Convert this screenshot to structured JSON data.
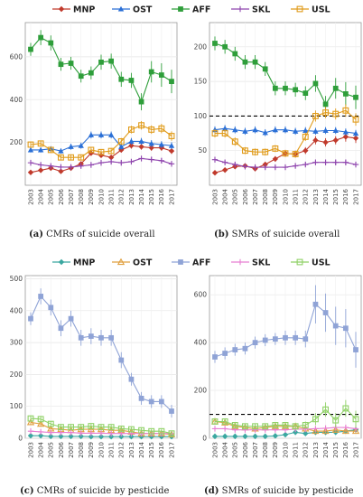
{
  "years": [
    "2003",
    "2004",
    "2005",
    "2006",
    "2007",
    "2008",
    "2009",
    "2010",
    "2011",
    "2012",
    "2013",
    "2014",
    "2015",
    "2016",
    "2017"
  ],
  "legend_top": [
    {
      "name": "MNP",
      "color": "#c0392b",
      "marker": "diamond"
    },
    {
      "name": "OST",
      "color": "#2a6fd6",
      "marker": "triangle"
    },
    {
      "name": "AFF",
      "color": "#2e9e3a",
      "marker": "square"
    },
    {
      "name": "SKL",
      "color": "#8e44ad",
      "marker": "plus"
    },
    {
      "name": "USL",
      "color": "#e09b1a",
      "marker": "square-open"
    }
  ],
  "legend_bottom": [
    {
      "name": "MNP",
      "color": "#3aa7a0",
      "marker": "diamond"
    },
    {
      "name": "OST",
      "color": "#e0a040",
      "marker": "triangle-open"
    },
    {
      "name": "AFF",
      "color": "#8fa3d6",
      "marker": "square"
    },
    {
      "name": "SKL",
      "color": "#e87fd2",
      "marker": "plus"
    },
    {
      "name": "USL",
      "color": "#8fd166",
      "marker": "square-open"
    }
  ],
  "captions": [
    {
      "label": "(a)",
      "text": " CMRs of suicide overall"
    },
    {
      "label": "(b)",
      "text": " SMRs of suicide overall"
    },
    {
      "label": "(c)",
      "text": " CMRs of suicide by pesticide"
    },
    {
      "label": "(d)",
      "text": " SMRs of suicide by pesticide"
    }
  ],
  "chart_data": [
    {
      "type": "line",
      "title": "",
      "ylim": [
        0,
        760
      ],
      "yticks": [
        200,
        400,
        600
      ],
      "reference_line": null,
      "series": [
        {
          "name": "MNP",
          "values": [
            60,
            70,
            80,
            65,
            80,
            100,
            150,
            140,
            130,
            165,
            185,
            180,
            175,
            175,
            160
          ],
          "err": [
            8,
            8,
            8,
            8,
            8,
            10,
            12,
            12,
            12,
            12,
            14,
            14,
            14,
            14,
            14
          ]
        },
        {
          "name": "OST",
          "values": [
            165,
            165,
            170,
            160,
            180,
            185,
            235,
            235,
            235,
            180,
            205,
            205,
            195,
            190,
            185
          ],
          "err": [
            12,
            12,
            12,
            12,
            14,
            14,
            16,
            16,
            16,
            14,
            16,
            16,
            16,
            16,
            16
          ]
        },
        {
          "name": "AFF",
          "values": [
            635,
            690,
            665,
            565,
            570,
            510,
            525,
            575,
            580,
            495,
            490,
            390,
            530,
            515,
            485
          ],
          "err": [
            30,
            35,
            35,
            30,
            30,
            30,
            30,
            35,
            35,
            35,
            35,
            40,
            50,
            55,
            55
          ]
        },
        {
          "name": "SKL",
          "values": [
            105,
            95,
            90,
            85,
            85,
            90,
            95,
            105,
            110,
            105,
            110,
            125,
            120,
            115,
            100
          ],
          "err": [
            8,
            8,
            8,
            8,
            8,
            8,
            8,
            10,
            10,
            10,
            10,
            12,
            12,
            12,
            12
          ]
        },
        {
          "name": "USL",
          "values": [
            190,
            195,
            165,
            130,
            130,
            130,
            165,
            155,
            160,
            205,
            260,
            280,
            260,
            265,
            230
          ],
          "err": [
            14,
            14,
            14,
            12,
            12,
            12,
            14,
            14,
            14,
            16,
            18,
            20,
            20,
            22,
            22
          ]
        }
      ]
    },
    {
      "type": "line",
      "title": "",
      "ylim": [
        0,
        235
      ],
      "yticks": [
        50,
        100,
        150,
        200
      ],
      "reference_line": 100,
      "series": [
        {
          "name": "MNP",
          "values": [
            18,
            22,
            27,
            28,
            24,
            30,
            38,
            46,
            45,
            50,
            65,
            62,
            65,
            70,
            68
          ],
          "err": [
            3,
            3,
            3,
            3,
            3,
            4,
            4,
            5,
            5,
            5,
            6,
            6,
            6,
            7,
            7
          ]
        },
        {
          "name": "OST",
          "values": [
            80,
            82,
            80,
            78,
            80,
            76,
            80,
            80,
            78,
            79,
            78,
            79,
            79,
            77,
            75
          ],
          "err": [
            5,
            5,
            5,
            5,
            5,
            5,
            5,
            5,
            5,
            5,
            5,
            5,
            5,
            5,
            5
          ]
        },
        {
          "name": "AFF",
          "values": [
            205,
            200,
            190,
            178,
            178,
            168,
            140,
            140,
            138,
            133,
            147,
            117,
            140,
            132,
            127
          ],
          "err": [
            10,
            10,
            10,
            10,
            10,
            10,
            10,
            10,
            10,
            10,
            12,
            12,
            15,
            17,
            17
          ]
        },
        {
          "name": "SKL",
          "values": [
            37,
            33,
            30,
            27,
            26,
            26,
            26,
            26,
            28,
            30,
            33,
            33,
            33,
            33,
            30
          ],
          "err": [
            3,
            3,
            3,
            3,
            3,
            3,
            3,
            3,
            3,
            3,
            3,
            4,
            4,
            4,
            4
          ]
        },
        {
          "name": "USL",
          "values": [
            75,
            75,
            63,
            50,
            48,
            48,
            53,
            46,
            45,
            70,
            100,
            105,
            103,
            108,
            95
          ],
          "err": [
            6,
            6,
            6,
            5,
            5,
            5,
            5,
            5,
            5,
            6,
            8,
            8,
            8,
            9,
            9
          ]
        }
      ]
    },
    {
      "type": "line",
      "title": "",
      "ylim": [
        0,
        510
      ],
      "yticks": [
        0,
        100,
        200,
        300,
        400,
        500
      ],
      "reference_line": null,
      "series": [
        {
          "name": "MNP",
          "values": [
            8,
            8,
            6,
            6,
            6,
            6,
            5,
            5,
            5,
            5,
            5,
            5,
            5,
            5,
            5
          ],
          "err": [
            3,
            3,
            3,
            3,
            3,
            3,
            3,
            3,
            3,
            3,
            3,
            3,
            3,
            3,
            3
          ]
        },
        {
          "name": "OST",
          "values": [
            50,
            45,
            30,
            28,
            25,
            28,
            28,
            28,
            25,
            25,
            20,
            15,
            15,
            15,
            12
          ],
          "err": [
            8,
            8,
            6,
            6,
            6,
            6,
            6,
            6,
            6,
            6,
            5,
            5,
            5,
            5,
            5
          ]
        },
        {
          "name": "AFF",
          "values": [
            375,
            445,
            410,
            345,
            375,
            315,
            320,
            315,
            315,
            245,
            185,
            125,
            115,
            115,
            85
          ],
          "err": [
            20,
            25,
            25,
            25,
            25,
            25,
            25,
            25,
            25,
            25,
            20,
            20,
            20,
            20,
            20
          ]
        },
        {
          "name": "SKL",
          "values": [
            22,
            20,
            18,
            18,
            18,
            16,
            16,
            16,
            15,
            15,
            15,
            15,
            15,
            15,
            15
          ],
          "err": [
            4,
            4,
            4,
            4,
            4,
            4,
            4,
            4,
            4,
            4,
            4,
            4,
            4,
            4,
            4
          ]
        },
        {
          "name": "USL",
          "values": [
            62,
            60,
            45,
            35,
            35,
            35,
            38,
            35,
            35,
            30,
            28,
            25,
            22,
            22,
            15
          ],
          "err": [
            10,
            10,
            8,
            8,
            8,
            8,
            8,
            8,
            8,
            8,
            7,
            7,
            7,
            7,
            6
          ]
        }
      ]
    },
    {
      "type": "line",
      "title": "",
      "ylim": [
        0,
        680
      ],
      "yticks": [
        0,
        200,
        400,
        600
      ],
      "reference_line": 100,
      "series": [
        {
          "name": "MNP",
          "values": [
            8,
            8,
            8,
            8,
            8,
            8,
            10,
            15,
            25,
            20,
            25,
            25,
            25,
            30,
            35
          ],
          "err": [
            4,
            4,
            4,
            4,
            4,
            4,
            4,
            4,
            5,
            5,
            5,
            6,
            6,
            6,
            6
          ]
        },
        {
          "name": "OST",
          "values": [
            70,
            65,
            50,
            45,
            40,
            45,
            50,
            50,
            50,
            40,
            30,
            30,
            35,
            30,
            30
          ],
          "err": [
            8,
            8,
            8,
            8,
            8,
            8,
            8,
            8,
            8,
            8,
            8,
            8,
            8,
            8,
            8
          ]
        },
        {
          "name": "AFF",
          "values": [
            340,
            355,
            370,
            375,
            400,
            410,
            415,
            420,
            420,
            415,
            560,
            525,
            470,
            460,
            370
          ],
          "err": [
            25,
            25,
            25,
            25,
            25,
            25,
            25,
            30,
            30,
            35,
            80,
            80,
            80,
            80,
            75
          ]
        },
        {
          "name": "SKL",
          "values": [
            40,
            40,
            35,
            35,
            35,
            35,
            35,
            35,
            38,
            38,
            40,
            42,
            45,
            45,
            40
          ],
          "err": [
            6,
            6,
            6,
            6,
            6,
            6,
            6,
            6,
            6,
            6,
            6,
            6,
            6,
            6,
            6
          ]
        },
        {
          "name": "USL",
          "values": [
            70,
            70,
            55,
            50,
            50,
            50,
            55,
            55,
            50,
            55,
            80,
            120,
            75,
            125,
            80
          ],
          "err": [
            10,
            10,
            10,
            10,
            10,
            10,
            10,
            12,
            12,
            15,
            25,
            30,
            30,
            35,
            35
          ]
        }
      ]
    }
  ]
}
